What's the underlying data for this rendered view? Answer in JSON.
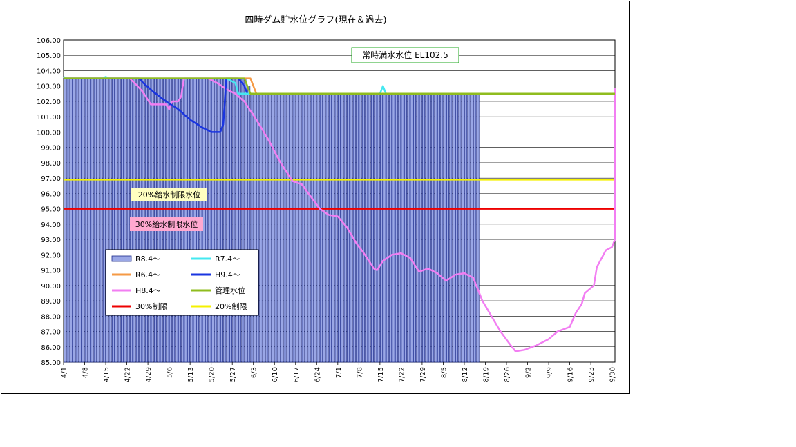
{
  "chart_data": {
    "type": "line",
    "title": "四時ダム貯水位グラフ(現在＆過去)",
    "ylim": [
      85,
      106
    ],
    "y_ticks": [
      "85.00",
      "86.00",
      "87.00",
      "88.00",
      "89.00",
      "90.00",
      "91.00",
      "92.00",
      "93.00",
      "94.00",
      "95.00",
      "96.00",
      "97.00",
      "98.00",
      "99.00",
      "100.00",
      "101.00",
      "102.00",
      "103.00",
      "104.00",
      "105.00",
      "106.00"
    ],
    "x_ticks": [
      "4/1",
      "4/8",
      "4/15",
      "4/22",
      "4/29",
      "5/6",
      "5/13",
      "5/20",
      "5/27",
      "6/3",
      "6/10",
      "6/17",
      "6/24",
      "7/1",
      "7/8",
      "7/15",
      "7/22",
      "7/29",
      "8/5",
      "8/12",
      "8/19",
      "8/26",
      "9/2",
      "9/9",
      "9/16",
      "9/23",
      "9/30"
    ],
    "n_days": 183,
    "series": [
      {
        "name": "R8.4～",
        "kind": "bar",
        "color": "#9aa7e6",
        "values": [
          103.5,
          103.5,
          103.5,
          103.5,
          103.5,
          103.5,
          103.5,
          103.5,
          103.5,
          103.5,
          103.5,
          103.5,
          103.5,
          103.5,
          103.5,
          103.5,
          103.5,
          103.5,
          103.5,
          103.5,
          103.5,
          103.5,
          103.5,
          103.5,
          103.5,
          103.5,
          103.5,
          103.5,
          103.5,
          103.5,
          103.5,
          103.5,
          103.5,
          103.5,
          103.5,
          103.5,
          103.5,
          103.5,
          103.5,
          103.5,
          103.5,
          103.5,
          103.5,
          103.5,
          103.5,
          103.5,
          103.5,
          103.5,
          103.5,
          103.5,
          103.5,
          103.5,
          103.5,
          103.5,
          103.5,
          103.5,
          103.5,
          103.5,
          103.5,
          103.5,
          103.5,
          103.0,
          102.5,
          102.5,
          102.5,
          102.5,
          102.5,
          102.5,
          102.5,
          102.5,
          102.5,
          102.5,
          102.5,
          102.5,
          102.5,
          102.5,
          102.5,
          102.5,
          102.5,
          102.5,
          102.5,
          102.5,
          102.5,
          102.5,
          102.5,
          102.5,
          102.5,
          102.5,
          102.5,
          102.5,
          102.5,
          102.5,
          102.5,
          102.5,
          102.5,
          102.5,
          102.5,
          102.5,
          102.5,
          102.5,
          102.5,
          102.5,
          102.5,
          102.5,
          102.5,
          102.5,
          102.5,
          102.5,
          102.5,
          102.5,
          102.5,
          102.5,
          102.5,
          102.5,
          102.5,
          102.5,
          102.5,
          102.5,
          102.5,
          102.5,
          102.5,
          102.5,
          102.5,
          102.5,
          102.5,
          102.5,
          102.5,
          102.5,
          102.5,
          102.5,
          102.5,
          102.5,
          102.5,
          102.5,
          102.5,
          102.5,
          102.5,
          102.5
        ]
      },
      {
        "name": "R7.4～",
        "kind": "line",
        "color": "#44e8f0",
        "points": [
          [
            0,
            103.6
          ],
          [
            1,
            103.5
          ],
          [
            13,
            103.5
          ],
          [
            14,
            103.6
          ],
          [
            15,
            103.5
          ],
          [
            54,
            103.5
          ],
          [
            57,
            103.2
          ],
          [
            58,
            102.5
          ],
          [
            105,
            102.5
          ],
          [
            106,
            103.0
          ],
          [
            107,
            102.5
          ],
          [
            182,
            102.5
          ]
        ]
      },
      {
        "name": "R6.4～",
        "kind": "line",
        "color": "#f59a45",
        "points": [
          [
            0,
            103.5
          ],
          [
            62,
            103.5
          ],
          [
            63,
            103.0
          ],
          [
            64,
            102.5
          ],
          [
            182,
            102.5
          ]
        ]
      },
      {
        "name": "H9.4～",
        "kind": "line",
        "color": "#1a35e0",
        "points": [
          [
            0,
            103.5
          ],
          [
            25,
            103.5
          ],
          [
            27,
            103.1
          ],
          [
            30,
            102.6
          ],
          [
            34,
            102.0
          ],
          [
            38,
            101.5
          ],
          [
            42,
            100.8
          ],
          [
            46,
            100.3
          ],
          [
            49,
            100.0
          ],
          [
            52,
            100.0
          ],
          [
            53,
            100.5
          ],
          [
            54,
            103.5
          ],
          [
            58,
            103.5
          ],
          [
            60,
            103.0
          ],
          [
            61,
            102.5
          ],
          [
            182,
            102.5
          ]
        ]
      },
      {
        "name": "H8.4～",
        "kind": "line",
        "color": "#f27ef2",
        "points": [
          [
            0,
            103.5
          ],
          [
            22,
            103.5
          ],
          [
            26,
            102.7
          ],
          [
            29,
            101.8
          ],
          [
            34,
            101.8
          ],
          [
            35,
            101.5
          ],
          [
            36,
            102.0
          ],
          [
            38,
            102.0
          ],
          [
            39,
            102.3
          ],
          [
            40,
            103.5
          ],
          [
            48,
            103.5
          ],
          [
            51,
            103.2
          ],
          [
            54,
            102.8
          ],
          [
            57,
            102.5
          ],
          [
            60,
            102.0
          ],
          [
            64,
            100.8
          ],
          [
            68,
            99.5
          ],
          [
            72,
            98.0
          ],
          [
            76,
            96.8
          ],
          [
            79,
            96.6
          ],
          [
            82,
            95.8
          ],
          [
            85,
            95.0
          ],
          [
            88,
            94.6
          ],
          [
            91,
            94.5
          ],
          [
            94,
            93.8
          ],
          [
            97,
            92.8
          ],
          [
            100,
            92.0
          ],
          [
            103,
            91.1
          ],
          [
            104,
            91.0
          ],
          [
            106,
            91.6
          ],
          [
            109,
            92.0
          ],
          [
            112,
            92.1
          ],
          [
            115,
            91.8
          ],
          [
            118,
            90.9
          ],
          [
            121,
            91.1
          ],
          [
            124,
            90.8
          ],
          [
            127,
            90.3
          ],
          [
            130,
            90.7
          ],
          [
            133,
            90.8
          ],
          [
            136,
            90.5
          ],
          [
            139,
            89.0
          ],
          [
            142,
            88.0
          ],
          [
            145,
            87.0
          ],
          [
            148,
            86.2
          ],
          [
            150,
            85.7
          ],
          [
            153,
            85.8
          ],
          [
            157,
            86.1
          ],
          [
            161,
            86.5
          ],
          [
            164,
            87.0
          ],
          [
            168,
            87.3
          ],
          [
            170,
            88.2
          ],
          [
            172,
            88.8
          ],
          [
            173,
            89.5
          ],
          [
            176,
            90.0
          ],
          [
            177,
            91.2
          ],
          [
            180,
            92.3
          ],
          [
            182,
            92.5
          ],
          [
            185,
            93.0
          ],
          [
            186,
            102.5
          ],
          [
            190,
            102.8
          ],
          [
            192,
            102.5
          ],
          [
            194,
            102.5
          ]
        ]
      },
      {
        "name": "管理水位",
        "kind": "line",
        "color": "#8fbc1e",
        "points": [
          [
            0,
            103.5
          ],
          [
            60,
            103.5
          ],
          [
            62,
            102.5
          ],
          [
            194,
            102.5
          ]
        ]
      },
      {
        "name": "30%制限",
        "kind": "hline",
        "color": "#ee0000",
        "value": 95.0
      },
      {
        "name": "20%制限",
        "kind": "hline",
        "color": "#f5f100",
        "value": 96.9
      }
    ],
    "legend_placement": "lower-left",
    "annotations": [
      {
        "text": "常時満水水位 EL102.5",
        "style": "full"
      },
      {
        "text": "20%給水制限水位",
        "style": "limit20"
      },
      {
        "text": "30%給水制限水位",
        "style": "limit30"
      }
    ],
    "grid": "horizontal"
  }
}
